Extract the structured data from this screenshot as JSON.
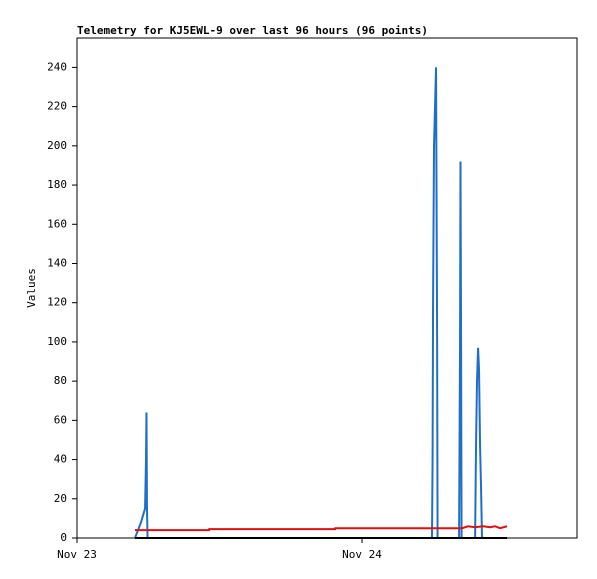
{
  "chart_data": {
    "type": "line",
    "title": "Telemetry for KJ5EWL-9 over last 96 hours (96 points)",
    "y_label": "Values",
    "xlim": [
      0,
      42.1
    ],
    "xticks": [
      {
        "value": 0,
        "label": "Nov 23"
      },
      {
        "value": 24,
        "label": "Nov 24"
      }
    ],
    "ylim": [
      0,
      255
    ],
    "yticks": [
      0,
      20,
      40,
      60,
      80,
      100,
      120,
      140,
      160,
      180,
      200,
      220,
      240
    ],
    "series": [
      {
        "color": "#1f6fc8",
        "x": [
          4.88,
          5.39,
          5.73,
          5.81,
          5.85,
          5.89,
          5.94,
          29.89,
          29.94,
          29.98,
          30.06,
          30.23,
          30.32,
          30.36,
          32.17,
          32.25,
          32.29,
          32.34,
          32.38,
          33.52,
          33.6,
          33.68,
          33.77,
          33.85,
          33.94,
          34.02,
          34.1
        ],
        "values": [
          0,
          8,
          15,
          40,
          64,
          16,
          0,
          0,
          40,
          120,
          200,
          240,
          105,
          0,
          0,
          97,
          192,
          97,
          0,
          0,
          48,
          80,
          97,
          86,
          46,
          26,
          0
        ]
      },
      {
        "color": "#e01010",
        "x": [
          4.88,
          11.12,
          11.13,
          21.73,
          21.74,
          32.42,
          32.93,
          33.5,
          34.2,
          34.78,
          35.2,
          35.62,
          36.21
        ],
        "values": [
          4,
          4,
          4.5,
          4.5,
          5,
          5,
          6,
          5.5,
          6,
          5.5,
          6,
          5,
          6
        ]
      },
      {
        "color": "#000000",
        "x": [
          4.88,
          36.21
        ],
        "values": [
          0,
          0
        ]
      }
    ]
  }
}
